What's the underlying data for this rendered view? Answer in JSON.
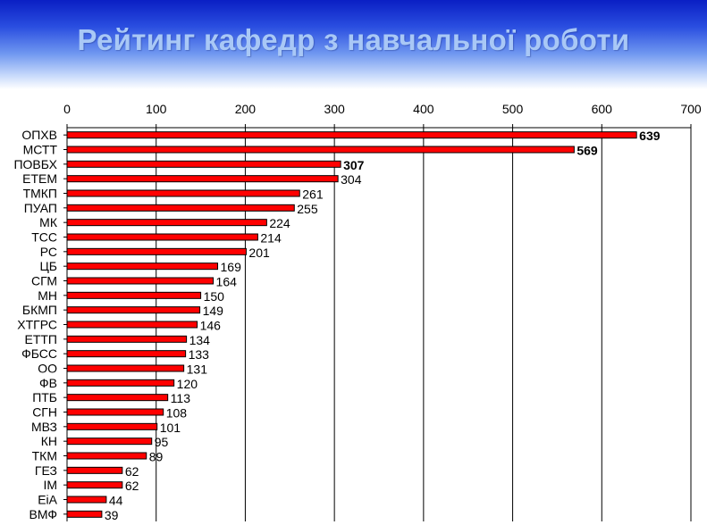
{
  "title": "Рейтинг кафедр з навчальної роботи",
  "colors": {
    "bar": "#ff0000",
    "bar_stroke": "#000000",
    "banner_top": "#0a1fc4",
    "title_text": "#a9c8f6"
  },
  "chart_data": {
    "type": "bar",
    "orientation": "horizontal",
    "title": "Рейтинг кафедр з навчальної роботи",
    "xlabel": "",
    "ylabel": "",
    "xlim": [
      0,
      700
    ],
    "x_ticks": [
      0,
      100,
      200,
      300,
      400,
      500,
      600,
      700
    ],
    "axis_position": "top",
    "grid": "vertical",
    "categories": [
      "ОПХВ",
      "МСТТ",
      "ПОВБХ",
      "ЕТЕМ",
      "ТМКП",
      "ПУАП",
      "МК",
      "ТСС",
      "РС",
      "ЦБ",
      "СГМ",
      "МН",
      "БКМП",
      "ХТГРС",
      "ЕТТП",
      "ФБСС",
      "ОО",
      "ФВ",
      "ПТБ",
      "СГН",
      "МВЗ",
      "КН",
      "ТКМ",
      "ГЕЗ",
      "ІМ",
      "ЕіА",
      "ВМФ"
    ],
    "values": [
      639,
      569,
      307,
      304,
      261,
      255,
      224,
      214,
      201,
      169,
      164,
      150,
      149,
      146,
      134,
      133,
      131,
      120,
      113,
      108,
      101,
      95,
      89,
      62,
      62,
      44,
      39
    ],
    "data_labels": [
      "639",
      "569",
      "307",
      "304",
      "261",
      "255",
      "224",
      "214",
      "201",
      "169",
      "164",
      "150",
      "149",
      "146",
      "134",
      "133",
      "131",
      "120",
      "113",
      "108",
      "101",
      "95",
      "89",
      "62",
      "62",
      "44",
      "39"
    ],
    "bold_labels": [
      true,
      true,
      true,
      false,
      false,
      false,
      false,
      false,
      false,
      false,
      false,
      false,
      false,
      false,
      false,
      false,
      false,
      false,
      false,
      false,
      false,
      false,
      false,
      false,
      false,
      false,
      false
    ]
  }
}
